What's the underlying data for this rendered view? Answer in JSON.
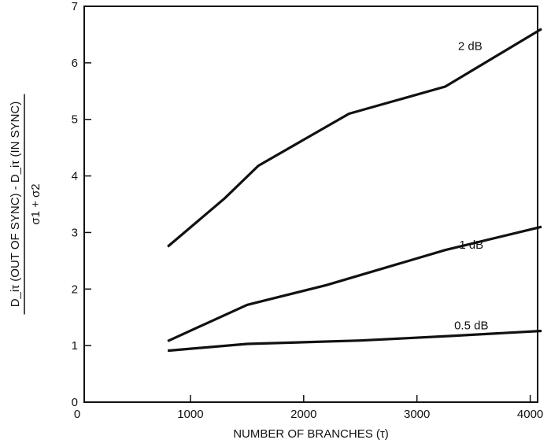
{
  "chart_data": {
    "type": "line",
    "title": "",
    "xlabel": "NUMBER OF BRANCHES (τ)",
    "ylabel": {
      "numerator": "D_iτ (OUT OF SYNC) - D_iτ (IN SYNC)",
      "denominator": "σ1 + σ2"
    },
    "xlim": [
      0,
      4100
    ],
    "ylim": [
      0,
      7
    ],
    "xticks": [
      0,
      1000,
      2000,
      3000,
      4000
    ],
    "yticks": [
      0,
      1,
      2,
      3,
      4,
      5,
      6,
      7
    ],
    "grid": false,
    "series": [
      {
        "name": "2 dB",
        "points": [
          [
            800,
            2.75
          ],
          [
            1300,
            3.6
          ],
          [
            1600,
            4.18
          ],
          [
            2400,
            5.1
          ],
          [
            3250,
            5.58
          ],
          [
            4100,
            6.6
          ]
        ]
      },
      {
        "name": "1 dB",
        "points": [
          [
            800,
            1.08
          ],
          [
            1500,
            1.72
          ],
          [
            2200,
            2.07
          ],
          [
            3250,
            2.69
          ],
          [
            4100,
            3.1
          ]
        ]
      },
      {
        "name": "0.5 dB",
        "points": [
          [
            800,
            0.91
          ],
          [
            1500,
            1.03
          ],
          [
            2500,
            1.09
          ],
          [
            3300,
            1.17
          ],
          [
            4100,
            1.26
          ]
        ]
      }
    ]
  }
}
